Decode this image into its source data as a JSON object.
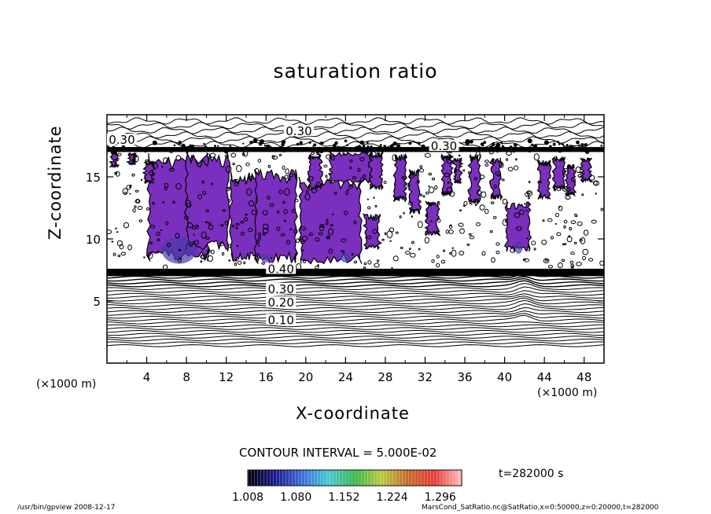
{
  "chart_data": {
    "type": "heatmap",
    "title": "saturation ratio",
    "xlabel": "X-coordinate",
    "ylabel": "Z-coordinate",
    "x_unit": "(×1000 m)",
    "xlim": [
      0,
      50
    ],
    "ylim": [
      0,
      20
    ],
    "x_ticks": [
      "4",
      "8",
      "12",
      "16",
      "20",
      "24",
      "28",
      "32",
      "36",
      "40",
      "44",
      "48"
    ],
    "y_ticks": [
      "5",
      "10",
      "15"
    ],
    "contour_labels": [
      {
        "text": "0.30",
        "x": 19.3,
        "z": 18.6
      },
      {
        "text": "0.30",
        "x": 33.9,
        "z": 17.4
      },
      {
        "text": "0.30",
        "x": 1.5,
        "z": 17.9
      },
      {
        "text": "0.40",
        "x": 17.5,
        "z": 7.5
      },
      {
        "text": "0.30",
        "x": 17.5,
        "z": 5.9
      },
      {
        "text": "0.20",
        "x": 17.5,
        "z": 4.8
      },
      {
        "text": "0.10",
        "x": 17.5,
        "z": 3.4
      }
    ],
    "contour_interval_text": "CONTOUR INTERVAL = 5.000E-02",
    "colorbar": {
      "ticks": [
        "1.008",
        "1.080",
        "1.152",
        "1.224",
        "1.296"
      ],
      "range": [
        1.008,
        1.296
      ],
      "colors": [
        "#000000",
        "#1a1a8a",
        "#3a6ad8",
        "#48c8d8",
        "#3ab84a",
        "#b8c840",
        "#c86a2a",
        "#e83a3a",
        "#ffc0c0"
      ]
    },
    "supersaturated_region_color": "#7b2fbe",
    "time_label": "t=282000 s"
  },
  "footer": {
    "left": "/usr/bin/gpview   2008-12-17",
    "right": "MarsCond_SatRatio.nc@SatRatio,x=0:50000,z=0:20000,t=282000"
  }
}
